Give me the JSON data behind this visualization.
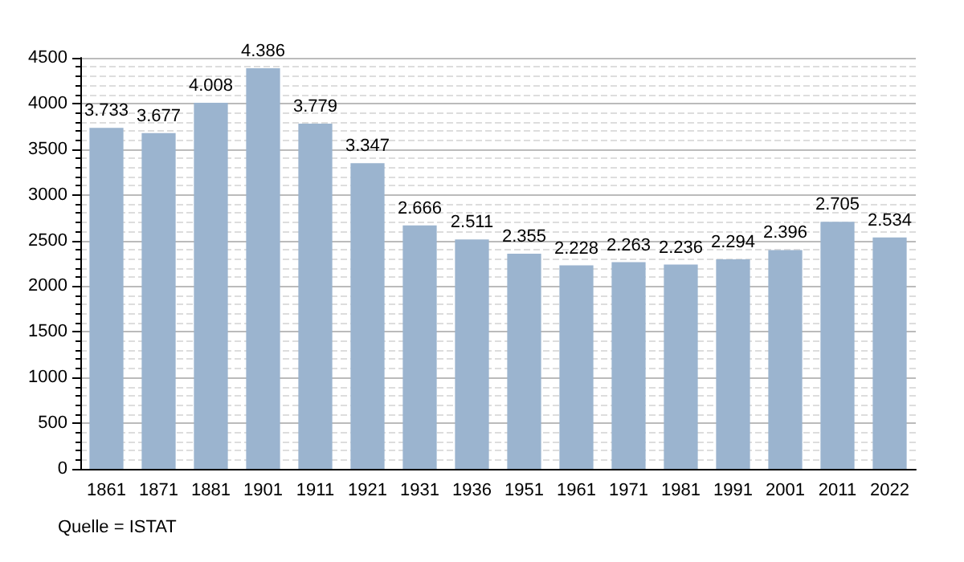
{
  "chart_data": {
    "type": "bar",
    "categories": [
      "1861",
      "1871",
      "1881",
      "1901",
      "1911",
      "1921",
      "1931",
      "1936",
      "1951",
      "1961",
      "1971",
      "1981",
      "1991",
      "2001",
      "2011",
      "2022"
    ],
    "values": [
      3733,
      3677,
      4008,
      4386,
      3779,
      3347,
      2666,
      2511,
      2355,
      2228,
      2263,
      2236,
      2294,
      2396,
      2705,
      2534
    ],
    "value_labels": [
      "3.733",
      "3.677",
      "4.008",
      "4.386",
      "3.779",
      "3.347",
      "2.666",
      "2.511",
      "2.355",
      "2.228",
      "2.263",
      "2.236",
      "2.294",
      "2.396",
      "2.705",
      "2.534"
    ],
    "color": "#9bb4cf",
    "ylim": [
      0,
      4500
    ],
    "yticks": [
      0,
      500,
      1000,
      1500,
      2000,
      2500,
      3000,
      3500,
      4000,
      4500
    ],
    "grid": "y",
    "annotations": [
      "Quelle = ISTAT"
    ]
  }
}
